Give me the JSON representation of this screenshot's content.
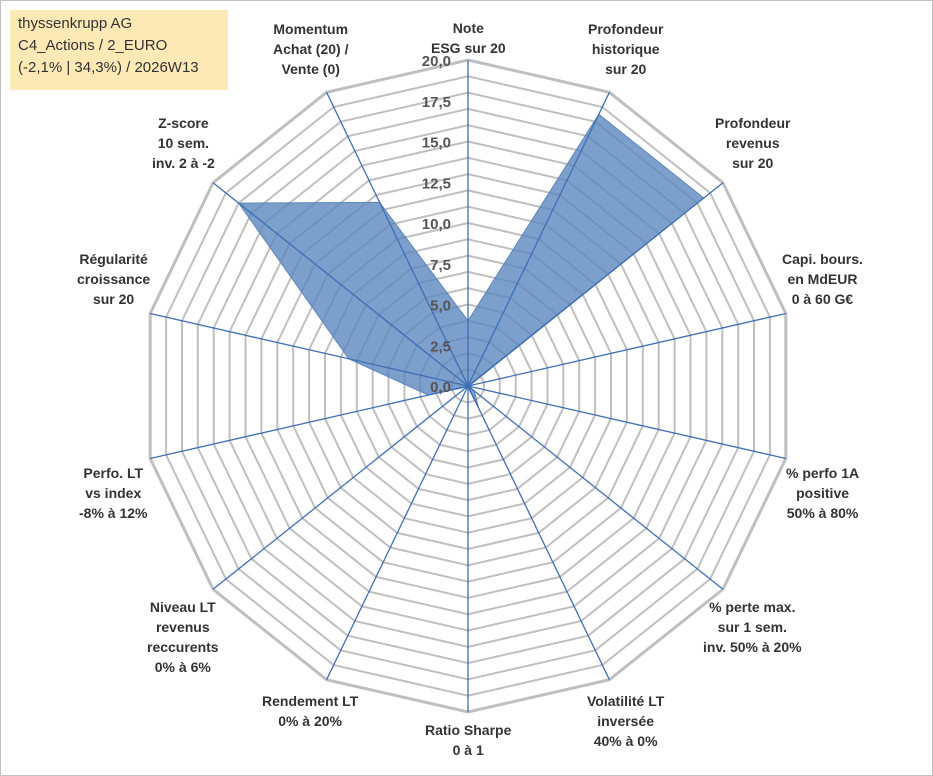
{
  "info": {
    "line1": "thyssenkrupp AG",
    "line2": "C4_Actions / 2_EURO",
    "line3": "(-2,1% | 34,3%) / 2026W13"
  },
  "chart_data": {
    "type": "radar",
    "rmin": 0,
    "rmax": 20,
    "ticks": [
      "0,0",
      "2,5",
      "5,0",
      "7,5",
      "10,0",
      "12,5",
      "15,0",
      "17,5",
      "20,0"
    ],
    "grid_rings": 20,
    "axes": [
      {
        "label": [
          "Note",
          "ESG sur 20"
        ],
        "value": 4.0
      },
      {
        "label": [
          "Profondeur",
          "historique",
          "sur 20"
        ],
        "value": 18.5
      },
      {
        "label": [
          "Profondeur",
          "revenus",
          "sur 20"
        ],
        "value": 18.5
      },
      {
        "label": [
          "Capi. bours.",
          "en MdEUR",
          "0 à 60 G€"
        ],
        "value": 0.1
      },
      {
        "label": [
          "% perfo 1A",
          "positive",
          "50% à 80%"
        ],
        "value": 0.1
      },
      {
        "label": [
          "% perte max.",
          "sur 1 sem.",
          "inv. 50% à 20%"
        ],
        "value": 0.5
      },
      {
        "label": [
          "Volatilité LT",
          "inversée",
          "40% à 0%"
        ],
        "value": 1.5
      },
      {
        "label": [
          "Ratio Sharpe",
          "0 à 1"
        ],
        "value": 0.1
      },
      {
        "label": [
          "Rendement LT",
          "0% à 20%"
        ],
        "value": 0.1
      },
      {
        "label": [
          "Niveau LT",
          "revenus",
          "reccurents",
          "0% à 6%"
        ],
        "value": 0.1
      },
      {
        "label": [
          "Perfo. LT",
          "vs index",
          "-8% à 12%"
        ],
        "value": 2.5
      },
      {
        "label": [
          "Régularité",
          "croissance",
          "sur 20"
        ],
        "value": 7.5
      },
      {
        "label": [
          "Z-score",
          "10 sem.",
          "inv. 2 à -2"
        ],
        "value": 18.0
      },
      {
        "label": [
          "Momentum",
          "Achat (20) /",
          "Vente (0)"
        ],
        "value": 12.5
      }
    ],
    "series": [
      {
        "color": "#5b87be",
        "fill_opacity": 0.8
      }
    ],
    "grid_color": "#bfbfbf",
    "axis_color": "#3f6fb5"
  }
}
